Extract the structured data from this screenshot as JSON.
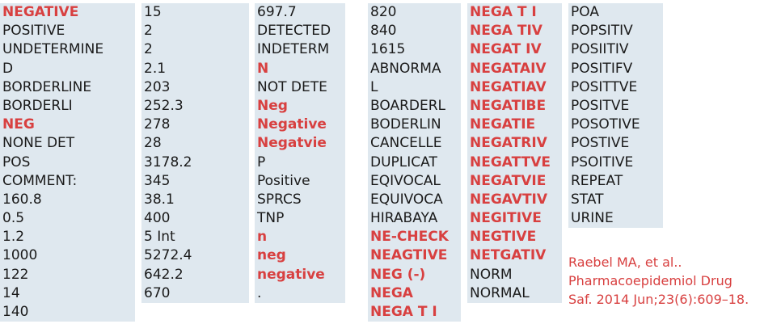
{
  "columns": [
    {
      "id": "col1",
      "items": [
        {
          "t": "NEGATIVE",
          "red": true
        },
        {
          "t": "POSITIVE"
        },
        {
          "t": "UNDETERMINE"
        },
        {
          "t": "D"
        },
        {
          "t": "BORDERLINE"
        },
        {
          "t": "BORDERLI"
        },
        {
          "t": "NEG",
          "red": true
        },
        {
          "t": "NONE DET"
        },
        {
          "t": "POS"
        },
        {
          "t": "COMMENT:"
        },
        {
          "t": "160.8"
        },
        {
          "t": "0.5"
        },
        {
          "t": "1.2"
        },
        {
          "t": "1000"
        },
        {
          "t": "122"
        },
        {
          "t": "14"
        },
        {
          "t": "140"
        }
      ]
    },
    {
      "id": "col2",
      "items": [
        {
          "t": "15"
        },
        {
          "t": "2"
        },
        {
          "t": "2"
        },
        {
          "t": "2.1"
        },
        {
          "t": "203"
        },
        {
          "t": "252.3"
        },
        {
          "t": "278"
        },
        {
          "t": "28"
        },
        {
          "t": "3178.2"
        },
        {
          "t": "345"
        },
        {
          "t": "38.1"
        },
        {
          "t": "400"
        },
        {
          "t": "5   Int"
        },
        {
          "t": "5272.4"
        },
        {
          "t": "642.2"
        },
        {
          "t": "670"
        }
      ]
    },
    {
      "id": "col3",
      "items": [
        {
          "t": "697.7"
        },
        {
          "t": "DETECTED"
        },
        {
          "t": "INDETERM"
        },
        {
          "t": "N",
          "red": true
        },
        {
          "t": "NOT DETE"
        },
        {
          "t": "Neg",
          "red": true
        },
        {
          "t": "Negative",
          "red": true
        },
        {
          "t": "Negatvie",
          "red": true
        },
        {
          "t": "P"
        },
        {
          "t": "Positive"
        },
        {
          "t": "SPRCS"
        },
        {
          "t": "TNP"
        },
        {
          "t": "n",
          "red": true
        },
        {
          "t": "neg",
          "red": true
        },
        {
          "t": "negative",
          "red": true
        },
        {
          "t": "."
        }
      ]
    },
    {
      "id": "col4",
      "items": [
        {
          "t": "820"
        },
        {
          "t": "840"
        },
        {
          "t": "1615"
        },
        {
          "t": "ABNORMA"
        },
        {
          "t": "L"
        },
        {
          "t": "BOARDERL"
        },
        {
          "t": "BODERLIN"
        },
        {
          "t": "CANCELLE"
        },
        {
          "t": "DUPLICAT"
        },
        {
          "t": "EQIVOCAL"
        },
        {
          "t": "EQUIVOCA"
        },
        {
          "t": "HIRABAYA"
        },
        {
          "t": "NE-CHECK",
          "red": true
        },
        {
          "t": "NEAGTIVE",
          "red": true
        },
        {
          "t": "NEG (-)",
          "red": true
        },
        {
          "t": "NEGA",
          "red": true
        },
        {
          "t": "NEGA T I",
          "red": true
        }
      ]
    },
    {
      "id": "col5",
      "items": [
        {
          "t": "NEGA T I",
          "red": true
        },
        {
          "t": "NEGA TIV",
          "red": true
        },
        {
          "t": "NEGAT IV",
          "red": true
        },
        {
          "t": "NEGATAIV",
          "red": true
        },
        {
          "t": "NEGATIAV",
          "red": true
        },
        {
          "t": "NEGATIBE",
          "red": true
        },
        {
          "t": "NEGATIE",
          "red": true
        },
        {
          "t": "NEGATRIV",
          "red": true
        },
        {
          "t": "NEGATTVE",
          "red": true
        },
        {
          "t": "NEGATVIE",
          "red": true
        },
        {
          "t": "NEGAVTIV",
          "red": true
        },
        {
          "t": "NEGITIVE",
          "red": true
        },
        {
          "t": "NEGTIVE",
          "red": true
        },
        {
          "t": "NETGATIV",
          "red": true
        },
        {
          "t": "NORM"
        },
        {
          "t": "NORMAL"
        }
      ]
    },
    {
      "id": "col6",
      "items": [
        {
          "t": "POA"
        },
        {
          "t": "POPSITIV"
        },
        {
          "t": "POSIITIV"
        },
        {
          "t": "POSITIFV"
        },
        {
          "t": "POSITTVE"
        },
        {
          "t": "POSITVE"
        },
        {
          "t": "POSOTIVE"
        },
        {
          "t": "POSTIVE"
        },
        {
          "t": "PSOITIVE"
        },
        {
          "t": "REPEAT"
        },
        {
          "t": "STAT"
        },
        {
          "t": "URINE"
        }
      ]
    }
  ],
  "citation": {
    "line1": "Raebel MA, et al..",
    "line2": "Pharmacoepidemiol Drug",
    "line3": "Saf. 2014 Jun;23(6):609–18."
  },
  "colors": {
    "red": "#d84040",
    "cell_bg": "#dfe8ef"
  }
}
